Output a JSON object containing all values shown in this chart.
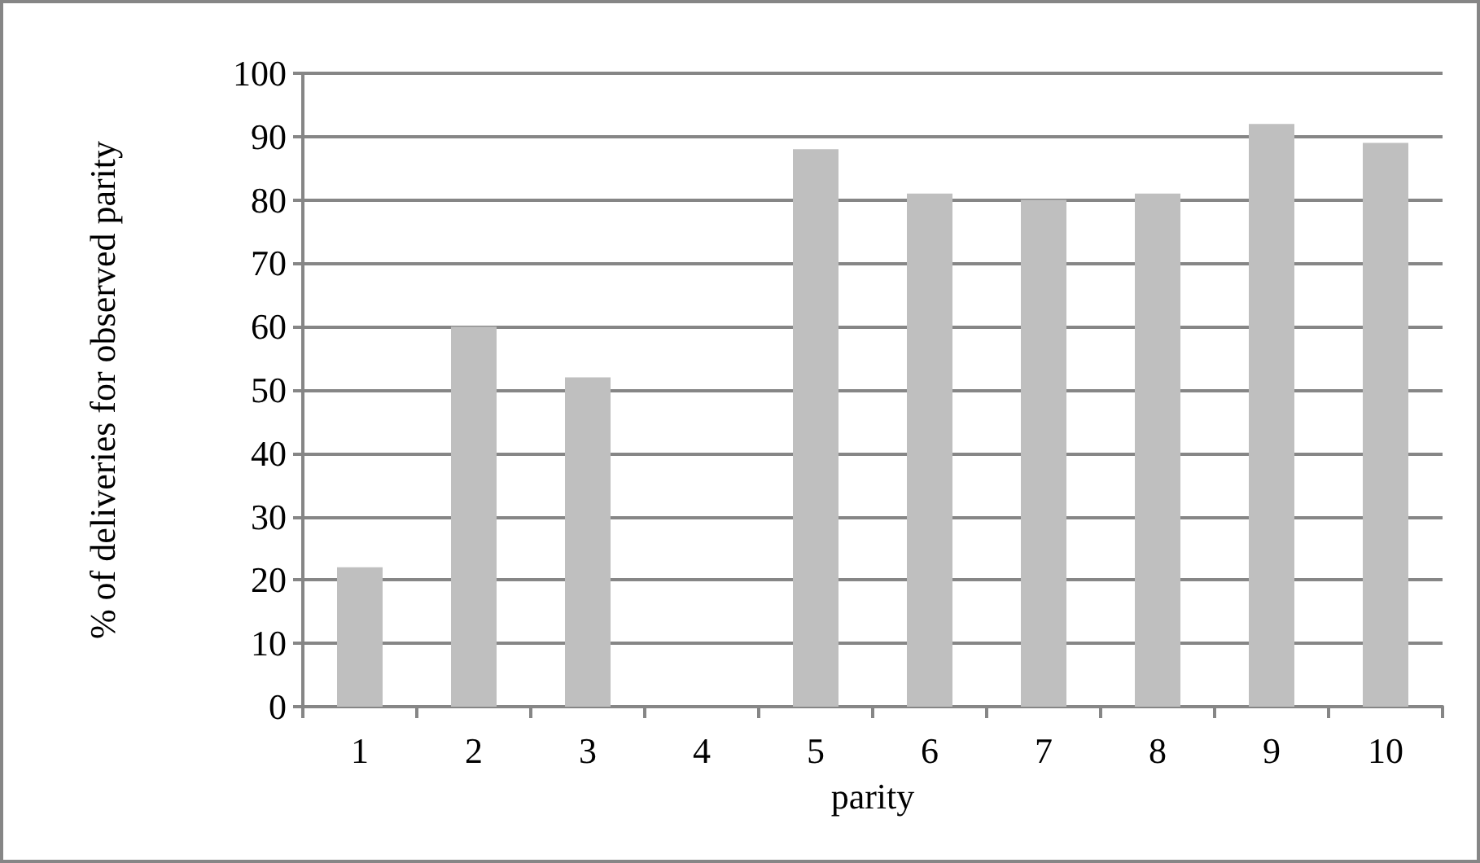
{
  "chart_data": {
    "type": "bar",
    "xlabel": "parity",
    "ylabel": "% of deliveries for observed parity",
    "categories": [
      "1",
      "2",
      "3",
      "4",
      "5",
      "6",
      "7",
      "8",
      "9",
      "10"
    ],
    "values": [
      22,
      60,
      52,
      0,
      88,
      81,
      80,
      81,
      92,
      89
    ],
    "color": "#bfbfbf",
    "ylim": [
      0,
      100
    ],
    "yticks": [
      0,
      10,
      20,
      30,
      40,
      50,
      60,
      70,
      80,
      90,
      100
    ],
    "grid": "y"
  }
}
